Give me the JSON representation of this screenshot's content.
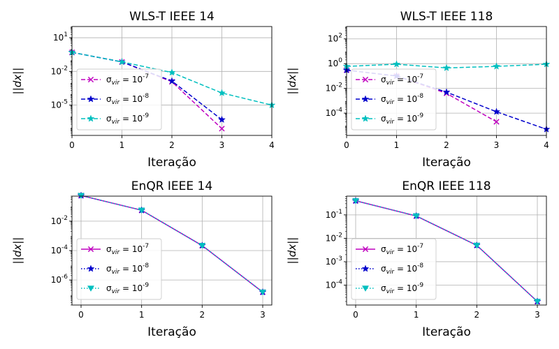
{
  "chart_data": [
    {
      "type": "line",
      "title": "WLS-T IEEE 14",
      "xlabel": "Iteração",
      "ylabel": "||dx||",
      "yscale": "log",
      "xlim": [
        0,
        4
      ],
      "ylim_log10": [
        -7.7,
        2.0
      ],
      "xticks": [
        0,
        1,
        2,
        3,
        4
      ],
      "yticks": [
        {
          "exp": 1,
          "label": "10^1"
        },
        {
          "exp": -2,
          "label": "10^-2"
        },
        {
          "exp": -5,
          "label": "10^-5"
        }
      ],
      "grid": true,
      "legend_position": "lower-left",
      "series": [
        {
          "name": "σ_vir = 10^-7",
          "color": "#bf00bf",
          "dash": "dashed",
          "marker": "x",
          "x": [
            0,
            1,
            2,
            3
          ],
          "y": [
            0.5,
            0.07,
            0.0012,
            8e-08
          ]
        },
        {
          "name": "σ_vir = 10^-8",
          "color": "#0000cc",
          "dash": "dashed",
          "marker": "star",
          "x": [
            0,
            1,
            2,
            3
          ],
          "y": [
            0.5,
            0.07,
            0.0014,
            5e-07
          ]
        },
        {
          "name": "σ_vir = 10^-9",
          "color": "#00bfbf",
          "dash": "dashed",
          "marker": "star",
          "x": [
            0,
            1,
            2,
            3,
            4
          ],
          "y": [
            0.5,
            0.07,
            0.008,
            0.00012,
            1e-05
          ]
        }
      ]
    },
    {
      "type": "line",
      "title": "WLS-T IEEE 118",
      "xlabel": "Iteração",
      "ylabel": "||dx||",
      "yscale": "log",
      "xlim": [
        0,
        4
      ],
      "ylim_log10": [
        -5.8,
        3.0
      ],
      "xticks": [
        0,
        1,
        2,
        3,
        4
      ],
      "yticks": [
        {
          "exp": 2,
          "label": "10^2"
        },
        {
          "exp": 0,
          "label": "10^0"
        },
        {
          "exp": -2,
          "label": "10^-2"
        },
        {
          "exp": -4,
          "label": "10^-4"
        }
      ],
      "grid": true,
      "legend_position": "lower-left",
      "series": [
        {
          "name": "σ_vir = 10^-7",
          "color": "#bf00bf",
          "dash": "dashed",
          "marker": "x",
          "x": [
            0,
            1,
            2,
            3
          ],
          "y": [
            0.3,
            0.1,
            0.004,
            2e-05
          ]
        },
        {
          "name": "σ_vir = 10^-8",
          "color": "#0000cc",
          "dash": "dashed",
          "marker": "star",
          "x": [
            0,
            1,
            2,
            3,
            4
          ],
          "y": [
            0.3,
            0.1,
            0.005,
            0.00013,
            5e-06
          ]
        },
        {
          "name": "σ_vir = 10^-9",
          "color": "#00bfbf",
          "dash": "dashed",
          "marker": "star",
          "x": [
            0,
            1,
            2,
            3,
            4
          ],
          "y": [
            0.6,
            0.9,
            0.45,
            0.6,
            0.9
          ]
        }
      ]
    },
    {
      "type": "line",
      "title": "EnQR IEEE 14",
      "xlabel": "Iteração",
      "ylabel": "||dx||",
      "yscale": "log",
      "xlim": [
        -0.15,
        3.15
      ],
      "ylim_log10": [
        -7.7,
        -0.3
      ],
      "xticks": [
        0,
        1,
        2,
        3
      ],
      "yticks": [
        {
          "exp": -2,
          "label": "10^-2"
        },
        {
          "exp": -4,
          "label": "10^-4"
        },
        {
          "exp": -6,
          "label": "10^-6"
        }
      ],
      "grid": true,
      "legend_position": "lower-left",
      "series": [
        {
          "name": "σ_vir = 10^-7",
          "color": "#bf00bf",
          "dash": "solid",
          "marker": "x",
          "x": [
            0,
            1,
            2,
            3
          ],
          "y": [
            0.55,
            0.055,
            0.00022,
            1.5e-07
          ]
        },
        {
          "name": "σ_vir = 10^-8",
          "color": "#0000cc",
          "dash": "dotted",
          "marker": "star",
          "x": [
            0,
            1,
            2,
            3
          ],
          "y": [
            0.55,
            0.055,
            0.00022,
            1.5e-07
          ]
        },
        {
          "name": "σ_vir = 10^-9",
          "color": "#00bfbf",
          "dash": "dotted",
          "marker": "triangle-down",
          "x": [
            0,
            1,
            2,
            3
          ],
          "y": [
            0.55,
            0.055,
            0.00022,
            1.5e-07
          ]
        }
      ]
    },
    {
      "type": "line",
      "title": "EnQR IEEE 118",
      "xlabel": "Iteração",
      "ylabel": "||dx||",
      "yscale": "log",
      "xlim": [
        -0.15,
        3.15
      ],
      "ylim_log10": [
        -4.85,
        -0.2
      ],
      "xticks": [
        0,
        1,
        2,
        3
      ],
      "yticks": [
        {
          "exp": -1,
          "label": "10^-1"
        },
        {
          "exp": -2,
          "label": "10^-2"
        },
        {
          "exp": -3,
          "label": "10^-3"
        },
        {
          "exp": -4,
          "label": "10^-4"
        }
      ],
      "grid": true,
      "legend_position": "lower-left",
      "series": [
        {
          "name": "σ_vir = 10^-7",
          "color": "#bf00bf",
          "dash": "solid",
          "marker": "x",
          "x": [
            0,
            1,
            2,
            3
          ],
          "y": [
            0.4,
            0.09,
            0.005,
            2e-05
          ]
        },
        {
          "name": "σ_vir = 10^-8",
          "color": "#0000cc",
          "dash": "dotted",
          "marker": "star",
          "x": [
            0,
            1,
            2,
            3
          ],
          "y": [
            0.4,
            0.09,
            0.005,
            2e-05
          ]
        },
        {
          "name": "σ_vir = 10^-9",
          "color": "#00bfbf",
          "dash": "dotted",
          "marker": "triangle-down",
          "x": [
            0,
            1,
            2,
            3
          ],
          "y": [
            0.4,
            0.09,
            0.005,
            2e-05
          ]
        }
      ]
    }
  ]
}
